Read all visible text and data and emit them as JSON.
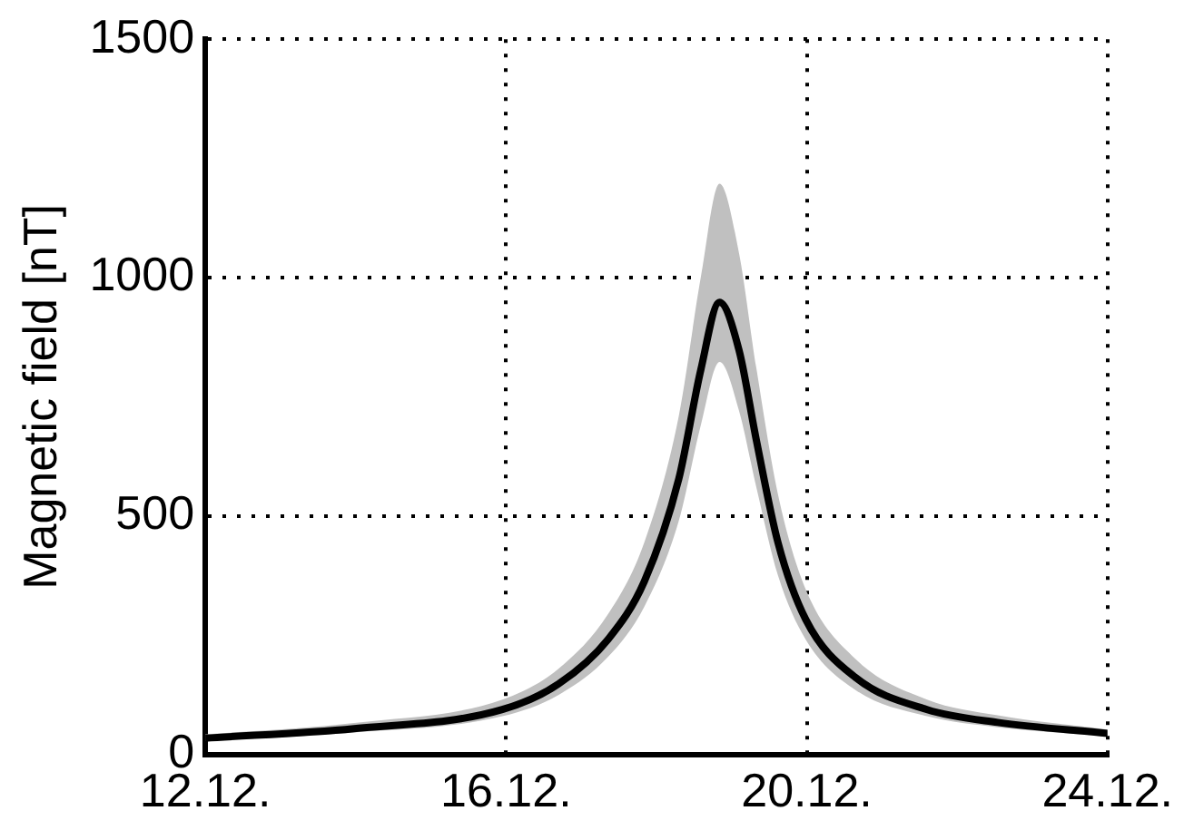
{
  "chart_data": {
    "type": "line",
    "ylabel": "Magnetic field [nT]",
    "x": [
      "--12-12",
      "--12-13T23:30",
      "--12-15T22:50",
      "--12-16T16:50",
      "--12-17T08:40",
      "--12-17T20:10",
      "--12-18T07:10",
      "--12-18T14:10",
      "--12-18T20:10",
      "--12-19T02:25",
      "--12-19T07:55",
      "--12-19T14:50",
      "--12-19T23:45",
      "--12-20T15:35",
      "--12-21T14:25",
      "--12-22T12:55",
      "--12-24"
    ],
    "series": [
      {
        "color": "#000000",
        "values": [
          34,
          54,
          94,
          148,
          242,
          363,
          578,
          806,
          948,
          847,
          659,
          444,
          282,
          161,
          94,
          67,
          44
        ],
        "lower": [
          28,
          46,
          80,
          125,
          205,
          310,
          490,
          690,
          823,
          720,
          560,
          375,
          240,
          135,
          80,
          57,
          38
        ],
        "upper": [
          42,
          66,
          115,
          180,
          295,
          445,
          710,
          1000,
          1197,
          1050,
          810,
          545,
          345,
          200,
          115,
          82,
          52
        ]
      }
    ],
    "xlim": [
      "--12-12",
      "--12-24"
    ],
    "xticks": [
      {
        "value": "--12-12",
        "label": "12.12."
      },
      {
        "value": "--12-16",
        "label": "16.12."
      },
      {
        "value": "--12-20",
        "label": "20.12."
      },
      {
        "value": "--12-24",
        "label": "24.12."
      }
    ],
    "ylim": [
      0,
      1500
    ],
    "yticks": [
      0,
      500,
      1000,
      1500
    ],
    "grid": true,
    "legend": false,
    "marker": "none",
    "line_style": "solid"
  }
}
